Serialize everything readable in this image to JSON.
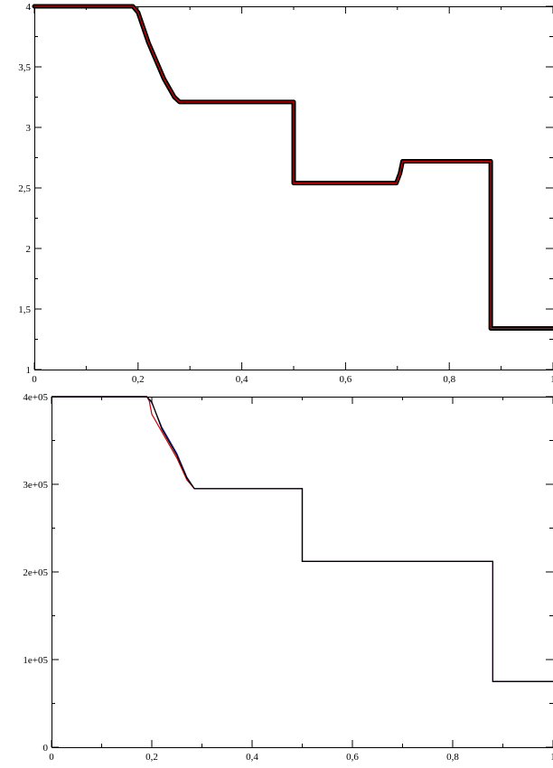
{
  "chart_data": [
    {
      "type": "line",
      "title": "",
      "xlabel": "",
      "ylabel": "",
      "xlim": [
        0,
        1
      ],
      "ylim": [
        1,
        4
      ],
      "x_ticks": [
        0,
        0.2,
        0.4,
        0.6,
        0.8,
        1
      ],
      "x_tick_labels": [
        "0",
        "0,2",
        "0,4",
        "0,6",
        "0,8",
        "1"
      ],
      "y_ticks": [
        1,
        1.5,
        2,
        2.5,
        3,
        3.5,
        4
      ],
      "y_tick_labels": [
        "1",
        "1,5",
        "2",
        "2,5",
        "3",
        "3,5",
        "4"
      ],
      "grid": false,
      "series": [
        {
          "style": "markers",
          "color": "#000000",
          "x": [
            0,
            0.19,
            0.2,
            0.22,
            0.25,
            0.27,
            0.28,
            0.5,
            0.5,
            0.698,
            0.705,
            0.71,
            0.88,
            0.88,
            0.88,
            0.88,
            0.88,
            0.88,
            0.88,
            0.88,
            0.88,
            0.88,
            0.88,
            1
          ],
          "y": [
            4,
            4,
            3.95,
            3.7,
            3.4,
            3.25,
            3.21,
            3.21,
            2.54,
            2.54,
            2.62,
            2.72,
            2.72,
            2.65,
            2.5,
            2.33,
            2.05,
            1.75,
            1.5,
            1.4,
            1.36,
            1.34,
            1.34,
            1.34
          ]
        },
        {
          "style": "line",
          "color": "#cc0000",
          "x": [
            0,
            0.19,
            0.2,
            0.22,
            0.25,
            0.27,
            0.28,
            0.5,
            0.5,
            0.698,
            0.705,
            0.71,
            0.88,
            0.88,
            1
          ],
          "y": [
            4,
            4,
            3.95,
            3.7,
            3.4,
            3.25,
            3.21,
            3.21,
            2.54,
            2.54,
            2.62,
            2.72,
            2.72,
            1.34,
            1.34
          ]
        }
      ]
    },
    {
      "type": "line",
      "title": "",
      "xlabel": "",
      "ylabel": "",
      "xlim": [
        0,
        1
      ],
      "ylim": [
        0,
        400000
      ],
      "x_ticks": [
        0,
        0.2,
        0.4,
        0.6,
        0.8,
        1
      ],
      "x_tick_labels": [
        "0",
        "0,2",
        "0,4",
        "0,6",
        "0,8",
        "1"
      ],
      "y_ticks": [
        0,
        100000,
        200000,
        300000,
        400000
      ],
      "y_tick_labels": [
        "0",
        "1e+05",
        "2e+05",
        "3e+05",
        "4e+05"
      ],
      "grid": false,
      "series": [
        {
          "style": "line",
          "color": "#cc0000",
          "x": [
            0,
            0.19,
            0.195,
            0.2,
            0.22,
            0.25,
            0.27,
            0.285,
            0.5,
            0.5,
            0.88,
            0.88,
            1
          ],
          "y": [
            400000,
            400000,
            395000,
            380000,
            360000,
            330000,
            305000,
            295000,
            295000,
            212000,
            212000,
            75000,
            75000
          ]
        },
        {
          "style": "line",
          "color": "#1a1aa0",
          "x": [
            0,
            0.19,
            0.2,
            0.22,
            0.25,
            0.27,
            0.285,
            0.5,
            0.5,
            0.88,
            0.88,
            1
          ],
          "y": [
            400000,
            400000,
            393000,
            365000,
            335000,
            308000,
            295000,
            295000,
            212000,
            212000,
            75000,
            75000
          ]
        },
        {
          "style": "line",
          "color": "#000000",
          "x": [
            0,
            0.19,
            0.2,
            0.22,
            0.25,
            0.27,
            0.285,
            0.5,
            0.5,
            0.88,
            0.88,
            1
          ],
          "y": [
            400000,
            400000,
            394000,
            363000,
            333000,
            307000,
            295000,
            295000,
            212000,
            212000,
            75000,
            75000
          ]
        }
      ]
    }
  ]
}
